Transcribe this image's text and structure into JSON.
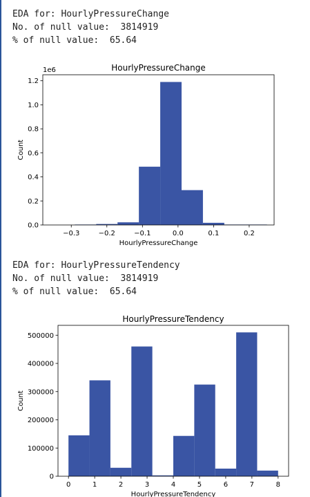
{
  "outputs": [
    {
      "line1": "EDA for: HourlyPressureChange",
      "line2": "No. of null value:  3814919",
      "line3": "% of null value:  65.64"
    },
    {
      "line1": "EDA for: HourlyPressureTendency",
      "line2": "No. of null value:  3814919",
      "line3": "% of null value:  65.64"
    }
  ],
  "chart_data": [
    {
      "type": "bar",
      "title": "HourlyPressureChange",
      "xlabel": "HourlyPressureChange",
      "ylabel": "Count",
      "y_offset_label": "1e6",
      "y_scale": 1000000,
      "bar_color": "#3a55a4",
      "grid": false,
      "xlim": [
        -0.38,
        0.27
      ],
      "ylim": [
        0,
        1250000
      ],
      "x_ticks": [
        {
          "value": -0.3,
          "label": "−0.3"
        },
        {
          "value": -0.2,
          "label": "−0.2"
        },
        {
          "value": -0.1,
          "label": "−0.1"
        },
        {
          "value": 0.0,
          "label": "0.0"
        },
        {
          "value": 0.1,
          "label": "0.1"
        },
        {
          "value": 0.2,
          "label": "0.2"
        }
      ],
      "y_ticks": [
        {
          "value": 0,
          "label": "0.0"
        },
        {
          "value": 200000,
          "label": "0.2"
        },
        {
          "value": 400000,
          "label": "0.4"
        },
        {
          "value": 600000,
          "label": "0.6"
        },
        {
          "value": 800000,
          "label": "0.8"
        },
        {
          "value": 1000000,
          "label": "1.0"
        },
        {
          "value": 1200000,
          "label": "1.2"
        }
      ],
      "bins": [
        {
          "x0": -0.35,
          "x1": -0.29,
          "count": 0
        },
        {
          "x0": -0.29,
          "x1": -0.23,
          "count": 1000
        },
        {
          "x0": -0.23,
          "x1": -0.17,
          "count": 8000
        },
        {
          "x0": -0.17,
          "x1": -0.11,
          "count": 22000
        },
        {
          "x0": -0.11,
          "x1": -0.05,
          "count": 485000
        },
        {
          "x0": -0.05,
          "x1": 0.01,
          "count": 1190000
        },
        {
          "x0": 0.01,
          "x1": 0.07,
          "count": 290000
        },
        {
          "x0": 0.07,
          "x1": 0.13,
          "count": 18000
        },
        {
          "x0": 0.13,
          "x1": 0.19,
          "count": 2000
        },
        {
          "x0": 0.19,
          "x1": 0.25,
          "count": 500
        }
      ]
    },
    {
      "type": "bar",
      "title": "HourlyPressureTendency",
      "xlabel": "HourlyPressureTendency",
      "ylabel": "Count",
      "bar_color": "#3a55a4",
      "grid": false,
      "xlim": [
        -0.4,
        8.4
      ],
      "ylim": [
        0,
        535000
      ],
      "x_ticks": [
        {
          "value": 0,
          "label": "0"
        },
        {
          "value": 1,
          "label": "1"
        },
        {
          "value": 2,
          "label": "2"
        },
        {
          "value": 3,
          "label": "3"
        },
        {
          "value": 4,
          "label": "4"
        },
        {
          "value": 5,
          "label": "5"
        },
        {
          "value": 6,
          "label": "6"
        },
        {
          "value": 7,
          "label": "7"
        },
        {
          "value": 8,
          "label": "8"
        }
      ],
      "y_ticks": [
        {
          "value": 0,
          "label": "0"
        },
        {
          "value": 100000,
          "label": "100000"
        },
        {
          "value": 200000,
          "label": "200000"
        },
        {
          "value": 300000,
          "label": "300000"
        },
        {
          "value": 400000,
          "label": "400000"
        },
        {
          "value": 500000,
          "label": "500000"
        }
      ],
      "bins": [
        {
          "x0": 0.0,
          "x1": 0.8,
          "count": 145000
        },
        {
          "x0": 0.8,
          "x1": 1.6,
          "count": 340000
        },
        {
          "x0": 1.6,
          "x1": 2.4,
          "count": 30000
        },
        {
          "x0": 2.4,
          "x1": 3.2,
          "count": 460000
        },
        {
          "x0": 3.2,
          "x1": 4.0,
          "count": 3000
        },
        {
          "x0": 4.0,
          "x1": 4.8,
          "count": 143000
        },
        {
          "x0": 4.8,
          "x1": 5.6,
          "count": 325000
        },
        {
          "x0": 5.6,
          "x1": 6.4,
          "count": 27000
        },
        {
          "x0": 6.4,
          "x1": 7.2,
          "count": 510000
        },
        {
          "x0": 7.2,
          "x1": 8.0,
          "count": 20000
        }
      ]
    }
  ]
}
